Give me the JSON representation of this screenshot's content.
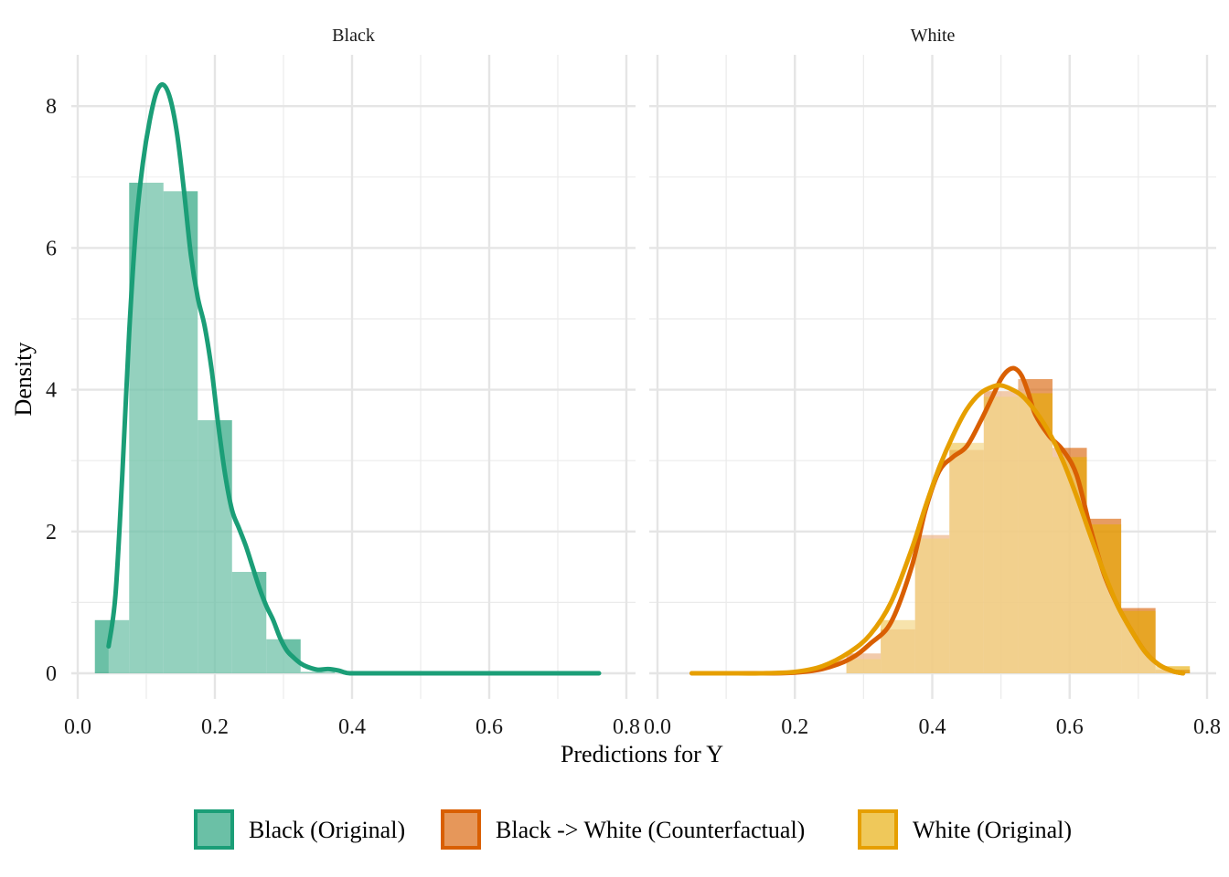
{
  "chart_data": {
    "type": "histogram-density",
    "xlabel": "Predictions for Y",
    "ylabel": "Density",
    "xlim": [
      0.0,
      0.8
    ],
    "ylim": [
      0,
      8.5
    ],
    "x_ticks": [
      0.0,
      0.2,
      0.4,
      0.6,
      0.8
    ],
    "x_tick_labels": [
      "0.0",
      "0.2",
      "0.4",
      "0.6",
      "0.8"
    ],
    "y_ticks": [
      0,
      2,
      4,
      6,
      8
    ],
    "y_tick_labels": [
      "0",
      "2",
      "4",
      "6",
      "8"
    ],
    "grid": true,
    "legend_position": "bottom",
    "legend": [
      {
        "key": "black_orig",
        "label": "Black (Original)",
        "color": "#1b9e77"
      },
      {
        "key": "counterfactual",
        "label": "Black -> White (Counterfactual)",
        "color": "#d95f02"
      },
      {
        "key": "white_orig",
        "label": "White (Original)",
        "color": "#e6ab02"
      }
    ],
    "panels": [
      {
        "strip_label": "Black",
        "series": [
          {
            "key": "black_orig",
            "color": "#1b9e77",
            "line_color": "#1b9e77",
            "histogram": {
              "bins": [
                {
                  "x0": 0.025,
                  "x1": 0.075,
                  "density": 0.75
                },
                {
                  "x0": 0.075,
                  "x1": 0.125,
                  "density": 6.92
                },
                {
                  "x0": 0.125,
                  "x1": 0.175,
                  "density": 6.8
                },
                {
                  "x0": 0.175,
                  "x1": 0.225,
                  "density": 3.57
                },
                {
                  "x0": 0.225,
                  "x1": 0.275,
                  "density": 1.43
                },
                {
                  "x0": 0.275,
                  "x1": 0.325,
                  "density": 0.48
                },
                {
                  "x0": 0.325,
                  "x1": 0.375,
                  "density": 0.02
                }
              ]
            },
            "density_curve": {
              "x": [
                0.045,
                0.055,
                0.065,
                0.075,
                0.085,
                0.095,
                0.105,
                0.115,
                0.125,
                0.135,
                0.145,
                0.155,
                0.165,
                0.175,
                0.185,
                0.195,
                0.205,
                0.215,
                0.225,
                0.235,
                0.245,
                0.255,
                0.265,
                0.275,
                0.285,
                0.295,
                0.305,
                0.315,
                0.325,
                0.335,
                0.35,
                0.365,
                0.38,
                0.39,
                0.4,
                0.45,
                0.5,
                0.55,
                0.6,
                0.65,
                0.7,
                0.76
              ],
              "y": [
                0.38,
                1.1,
                2.8,
                4.8,
                6.3,
                7.2,
                7.8,
                8.2,
                8.3,
                8.1,
                7.6,
                6.8,
                5.9,
                5.3,
                4.9,
                4.3,
                3.5,
                2.8,
                2.3,
                2.05,
                1.8,
                1.5,
                1.2,
                0.95,
                0.75,
                0.5,
                0.32,
                0.22,
                0.14,
                0.09,
                0.05,
                0.06,
                0.04,
                0.01,
                0.0,
                0.0,
                0.0,
                0.0,
                0.0,
                0.0,
                0.0,
                0.0
              ]
            }
          }
        ]
      },
      {
        "strip_label": "White",
        "series": [
          {
            "key": "counterfactual",
            "color": "#d95f02",
            "line_color": "#d95f02",
            "histogram": {
              "bins": [
                {
                  "x0": 0.275,
                  "x1": 0.325,
                  "density": 0.28
                },
                {
                  "x0": 0.325,
                  "x1": 0.375,
                  "density": 0.62
                },
                {
                  "x0": 0.375,
                  "x1": 0.425,
                  "density": 1.95
                },
                {
                  "x0": 0.425,
                  "x1": 0.475,
                  "density": 3.15
                },
                {
                  "x0": 0.475,
                  "x1": 0.525,
                  "density": 3.98
                },
                {
                  "x0": 0.525,
                  "x1": 0.575,
                  "density": 4.15
                },
                {
                  "x0": 0.575,
                  "x1": 0.625,
                  "density": 3.18
                },
                {
                  "x0": 0.625,
                  "x1": 0.675,
                  "density": 2.18
                },
                {
                  "x0": 0.675,
                  "x1": 0.725,
                  "density": 0.92
                },
                {
                  "x0": 0.725,
                  "x1": 0.775,
                  "density": 0.05
                }
              ]
            },
            "density_curve": {
              "x": [
                0.05,
                0.1,
                0.15,
                0.2,
                0.24,
                0.28,
                0.31,
                0.34,
                0.37,
                0.39,
                0.41,
                0.43,
                0.45,
                0.47,
                0.49,
                0.5,
                0.51,
                0.52,
                0.53,
                0.54,
                0.55,
                0.57,
                0.59,
                0.61,
                0.63,
                0.65,
                0.67,
                0.69,
                0.71,
                0.73,
                0.75,
                0.765
              ],
              "y": [
                0.0,
                0.0,
                0.0,
                0.01,
                0.06,
                0.2,
                0.42,
                0.72,
                1.5,
                2.3,
                2.85,
                3.05,
                3.2,
                3.55,
                3.95,
                4.15,
                4.27,
                4.3,
                4.2,
                3.95,
                3.65,
                3.35,
                3.15,
                2.8,
                2.05,
                1.4,
                0.95,
                0.6,
                0.3,
                0.12,
                0.03,
                0.0
              ]
            }
          },
          {
            "key": "white_orig",
            "color": "#e6ab02",
            "line_color": "#e69f00",
            "histogram": {
              "bins": [
                {
                  "x0": 0.275,
                  "x1": 0.325,
                  "density": 0.2
                },
                {
                  "x0": 0.325,
                  "x1": 0.375,
                  "density": 0.75
                },
                {
                  "x0": 0.375,
                  "x1": 0.425,
                  "density": 1.9
                },
                {
                  "x0": 0.425,
                  "x1": 0.475,
                  "density": 3.25
                },
                {
                  "x0": 0.475,
                  "x1": 0.525,
                  "density": 3.9
                },
                {
                  "x0": 0.525,
                  "x1": 0.575,
                  "density": 3.95
                },
                {
                  "x0": 0.575,
                  "x1": 0.625,
                  "density": 3.05
                },
                {
                  "x0": 0.625,
                  "x1": 0.675,
                  "density": 2.1
                },
                {
                  "x0": 0.675,
                  "x1": 0.725,
                  "density": 0.88
                },
                {
                  "x0": 0.725,
                  "x1": 0.775,
                  "density": 0.1
                }
              ]
            },
            "density_curve": {
              "x": [
                0.05,
                0.1,
                0.15,
                0.2,
                0.24,
                0.28,
                0.31,
                0.34,
                0.37,
                0.39,
                0.41,
                0.43,
                0.45,
                0.47,
                0.49,
                0.5,
                0.51,
                0.53,
                0.55,
                0.57,
                0.59,
                0.61,
                0.63,
                0.65,
                0.67,
                0.69,
                0.71,
                0.73,
                0.75,
                0.765
              ],
              "y": [
                0.0,
                0.0,
                0.0,
                0.02,
                0.1,
                0.3,
                0.55,
                1.0,
                1.75,
                2.35,
                2.9,
                3.35,
                3.72,
                3.95,
                4.05,
                4.06,
                4.03,
                3.92,
                3.7,
                3.4,
                3.0,
                2.5,
                1.95,
                1.42,
                0.95,
                0.6,
                0.3,
                0.12,
                0.03,
                0.0
              ]
            }
          }
        ]
      }
    ]
  }
}
